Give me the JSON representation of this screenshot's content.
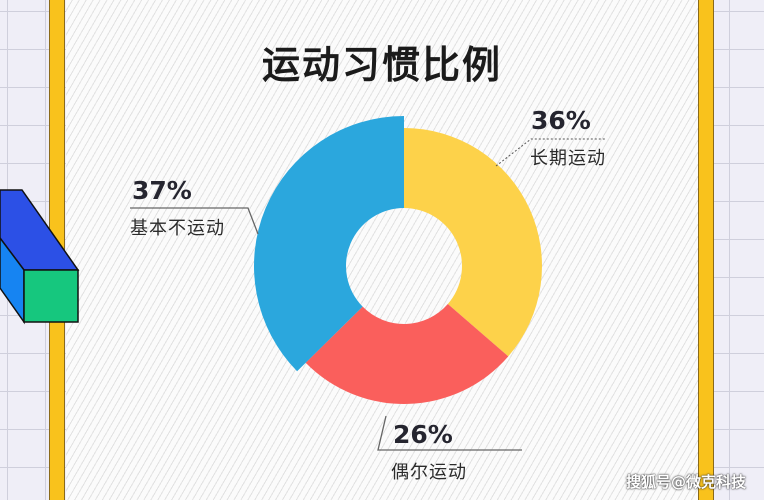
{
  "title": "运动习惯比例",
  "watermark": "搜狐号@微克科技",
  "colors": {
    "long_term": "#fdd24a",
    "occasional": "#fa5f5c",
    "none": "#2ba7dd",
    "border": "#f9c21c",
    "cube_top": "#2c50e6",
    "cube_side": "#1684f2",
    "cube_front": "#16c77e"
  },
  "labels": {
    "long_term": {
      "pct": "36%",
      "name": "长期运动"
    },
    "none": {
      "pct": "37%",
      "name": "基本不运动"
    },
    "occasional": {
      "pct": "26%",
      "name": "偶尔运动"
    }
  },
  "chart_data": {
    "type": "pie",
    "title": "运动习惯比例",
    "donut": true,
    "categories": [
      "长期运动",
      "偶尔运动",
      "基本不运动"
    ],
    "values": [
      36,
      26,
      37
    ],
    "unit": "%",
    "colors": [
      "#fdd24a",
      "#fa5f5c",
      "#2ba7dd"
    ],
    "start_angle": "12 o'clock, clockwise",
    "legend": "none (callout labels)"
  }
}
